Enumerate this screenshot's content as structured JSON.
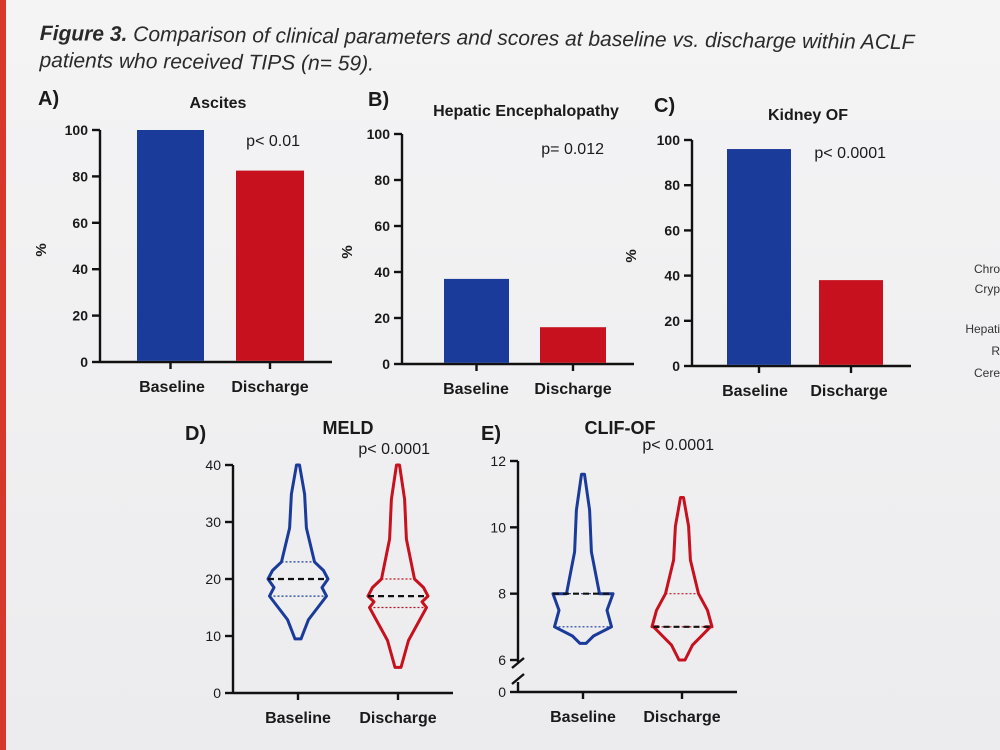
{
  "figure": {
    "label": "Figure 3.",
    "caption": "Comparison of clinical parameters and scores at baseline vs. discharge within ACLF patients who received TIPS (n= 59)."
  },
  "colors": {
    "baseline": "#1a3b9a",
    "discharge": "#c7111e"
  },
  "side_text": [
    "Chro",
    "Cryp",
    "Hepati",
    "R",
    "Cere"
  ],
  "chart_data": [
    {
      "panel": "A)",
      "type": "bar",
      "title": "Ascites",
      "ylabel": "%",
      "categories": [
        "Baseline",
        "Discharge"
      ],
      "values": [
        100,
        82.5
      ],
      "ylim": [
        0,
        100
      ],
      "yticks": [
        "0",
        "20",
        "40",
        "60",
        "80",
        "100"
      ],
      "annotation": "p< 0.01"
    },
    {
      "panel": "B)",
      "type": "bar",
      "title": "Hepatic Encephalopathy",
      "ylabel": "%",
      "categories": [
        "Baseline",
        "Discharge"
      ],
      "values": [
        37,
        16
      ],
      "ylim": [
        0,
        100
      ],
      "yticks": [
        "0",
        "20",
        "40",
        "60",
        "80",
        "100"
      ],
      "annotation": "p= 0.012"
    },
    {
      "panel": "C)",
      "type": "bar",
      "title": "Kidney OF",
      "ylabel": "%",
      "categories": [
        "Baseline",
        "Discharge"
      ],
      "values": [
        96,
        38
      ],
      "ylim": [
        0,
        100
      ],
      "yticks": [
        "0",
        "20",
        "40",
        "60",
        "80",
        "100"
      ],
      "annotation": "p< 0.0001"
    },
    {
      "panel": "D)",
      "type": "violin",
      "title": "MELD",
      "categories": [
        "Baseline",
        "Discharge"
      ],
      "ylim": [
        0,
        40
      ],
      "yticks": [
        "0",
        "10",
        "20",
        "30",
        "40"
      ],
      "annotation": "p< 0.0001",
      "series": [
        {
          "name": "Baseline",
          "min": 9.5,
          "q1": 17,
          "median": 20,
          "q3": 23,
          "max": 40
        },
        {
          "name": "Discharge",
          "min": 4.5,
          "q1": 15,
          "median": 17,
          "q3": 20,
          "max": 40
        }
      ]
    },
    {
      "panel": "E)",
      "type": "violin",
      "title": "CLIF-OF",
      "categories": [
        "Baseline",
        "Discharge"
      ],
      "ylim": [
        0,
        12
      ],
      "yticks": [
        "0",
        "6",
        "8",
        "10",
        "12"
      ],
      "axis_break": [
        0,
        6
      ],
      "annotation": "p< 0.0001",
      "series": [
        {
          "name": "Baseline",
          "min": 6.5,
          "q1": 7,
          "median": 8,
          "q3": 8,
          "max": 11.6
        },
        {
          "name": "Discharge",
          "min": 6,
          "q1": 7,
          "median": 7,
          "q3": 8,
          "max": 10.9
        }
      ]
    }
  ]
}
